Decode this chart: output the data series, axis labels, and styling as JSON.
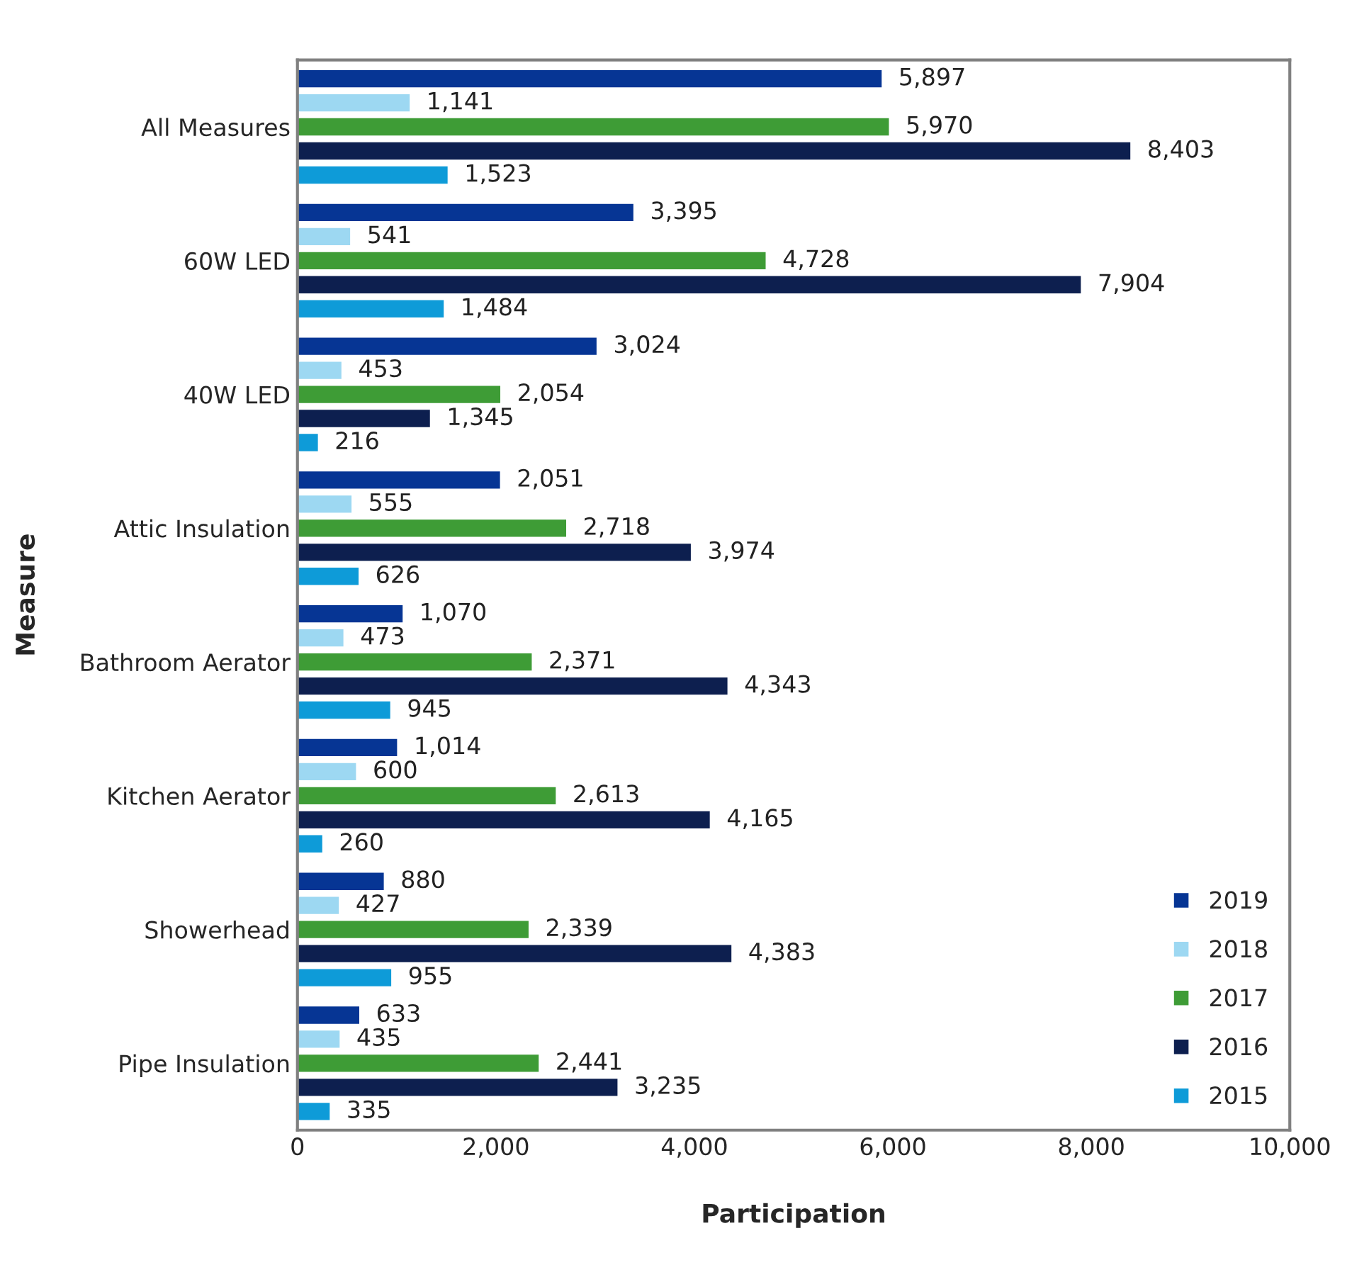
{
  "chart_data": {
    "type": "bar",
    "orientation": "horizontal",
    "xlabel": "Participation",
    "ylabel": "Measure",
    "categories": [
      "All Measures",
      "60W LED",
      "40W LED",
      "Attic Insulation",
      "Bathroom Aerator",
      "Kitchen Aerator",
      "Showerhead",
      "Pipe Insulation"
    ],
    "series": [
      {
        "name": "2019",
        "color": "#063594",
        "values": [
          5897,
          3395,
          3024,
          2051,
          1070,
          1014,
          880,
          633
        ],
        "value_labels": [
          "5,897",
          "3,395",
          "3,024",
          "2,051",
          "1,070",
          "1,014",
          "880",
          "633"
        ]
      },
      {
        "name": "2018",
        "color": "#9dd8f2",
        "values": [
          1141,
          541,
          453,
          555,
          473,
          600,
          427,
          435
        ],
        "value_labels": [
          "1,141",
          "541",
          "453",
          "555",
          "473",
          "600",
          "427",
          "435"
        ]
      },
      {
        "name": "2017",
        "color": "#3e9c36",
        "values": [
          5970,
          4728,
          2054,
          2718,
          2371,
          2613,
          2339,
          2441
        ],
        "value_labels": [
          "5,970",
          "4,728",
          "2,054",
          "2,718",
          "2,371",
          "2,613",
          "2,339",
          "2,441"
        ]
      },
      {
        "name": "2016",
        "color": "#0d1f4f",
        "values": [
          8403,
          7904,
          1345,
          3974,
          4343,
          4165,
          4383,
          3235
        ],
        "value_labels": [
          "8,403",
          "7,904",
          "1,345",
          "3,974",
          "4,343",
          "4,165",
          "4,383",
          "3,235"
        ]
      },
      {
        "name": "2015",
        "color": "#0e9bd8",
        "values": [
          1523,
          1484,
          216,
          626,
          945,
          260,
          955,
          335
        ],
        "value_labels": [
          "1,523",
          "1,484",
          "216",
          "626",
          "945",
          "260",
          "955",
          "335"
        ]
      }
    ],
    "xlim": [
      0,
      10000
    ],
    "xticks": [
      {
        "value": 0,
        "label": "0"
      },
      {
        "value": 2000,
        "label": "2,000"
      },
      {
        "value": 4000,
        "label": "4,000"
      },
      {
        "value": 6000,
        "label": "6,000"
      },
      {
        "value": 8000,
        "label": "8,000"
      },
      {
        "value": 10000,
        "label": "10,000"
      }
    ],
    "legend": "bottom right"
  }
}
